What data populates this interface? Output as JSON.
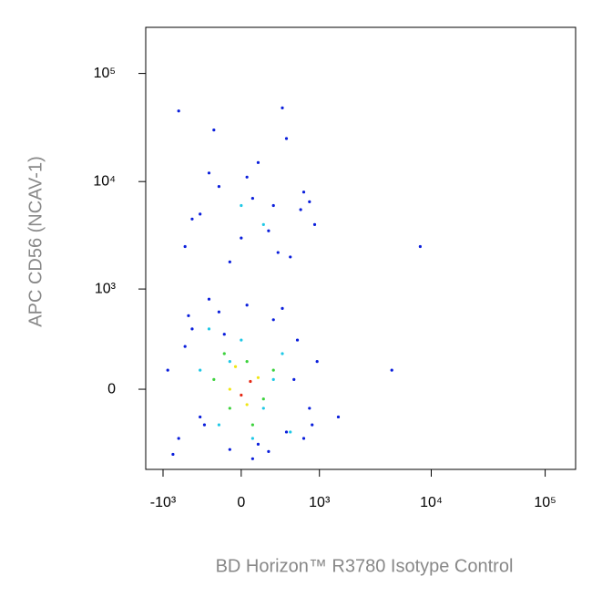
{
  "chart_data": {
    "type": "scatter",
    "x_label": "BD Horizon™ R3780 Isotype Control",
    "y_label": "APC CD56  (NCAV-1)",
    "xscale": "biexponential",
    "yscale": "biexponential",
    "xlim": [
      -1450,
      185000
    ],
    "ylim": [
      -640,
      267000
    ],
    "xticks": [
      {
        "value": -1000,
        "label": "-10³"
      },
      0,
      {
        "value": 1000,
        "label": "10³"
      },
      {
        "value": 10000,
        "label": "10⁴"
      },
      {
        "value": 100000,
        "label": "10⁵"
      }
    ],
    "yticks": [
      0,
      {
        "value": 1000,
        "label": "10³"
      },
      {
        "value": 10000,
        "label": "10⁴"
      },
      {
        "value": 100000,
        "label": "10⁵"
      }
    ],
    "series": [
      {
        "color": "#0a1edc",
        "x": [
          -900,
          -700,
          -500,
          -350,
          -200,
          -100,
          50,
          150,
          300,
          450,
          600,
          800,
          950,
          -800,
          -600,
          -300,
          100,
          400,
          700,
          -400,
          -150,
          250,
          550,
          -550,
          850,
          -600,
          -400,
          -200,
          0,
          150,
          300,
          500,
          700,
          900,
          -300,
          -100,
          100,
          250,
          450,
          650,
          -500,
          50,
          350,
          800,
          -250,
          8000,
          4500,
          1500,
          -700,
          400
        ],
        "y": [
          100,
          -300,
          400,
          -200,
          600,
          -400,
          700,
          -350,
          500,
          -250,
          300,
          -100,
          150,
          -450,
          250,
          800,
          -500,
          650,
          -300,
          -150,
          350,
          -420,
          50,
          550,
          -200,
          2500,
          5000,
          9000,
          3000,
          15000,
          6000,
          2000,
          8000,
          4000,
          12000,
          1800,
          7000,
          3500,
          25000,
          5500,
          4500,
          11000,
          2200,
          6500,
          30000,
          2500,
          100,
          -150,
          45000,
          48000
        ]
      },
      {
        "color": "#1ec8e6",
        "x": [
          -400,
          -200,
          0,
          200,
          400,
          -300,
          100,
          300,
          -100,
          500,
          0,
          200
        ],
        "y": [
          100,
          -200,
          300,
          -100,
          200,
          400,
          -300,
          50,
          150,
          -250,
          6000,
          4000
        ]
      },
      {
        "color": "#3cd23c",
        "x": [
          -250,
          -100,
          50,
          200,
          -150,
          100,
          300
        ],
        "y": [
          50,
          -100,
          150,
          -50,
          200,
          -200,
          100
        ]
      },
      {
        "color": "#f0e614",
        "x": [
          -100,
          50,
          150,
          -50
        ],
        "y": [
          0,
          -80,
          60,
          120
        ]
      },
      {
        "color": "#e62814",
        "x": [
          0,
          80
        ],
        "y": [
          -30,
          40
        ]
      }
    ]
  }
}
